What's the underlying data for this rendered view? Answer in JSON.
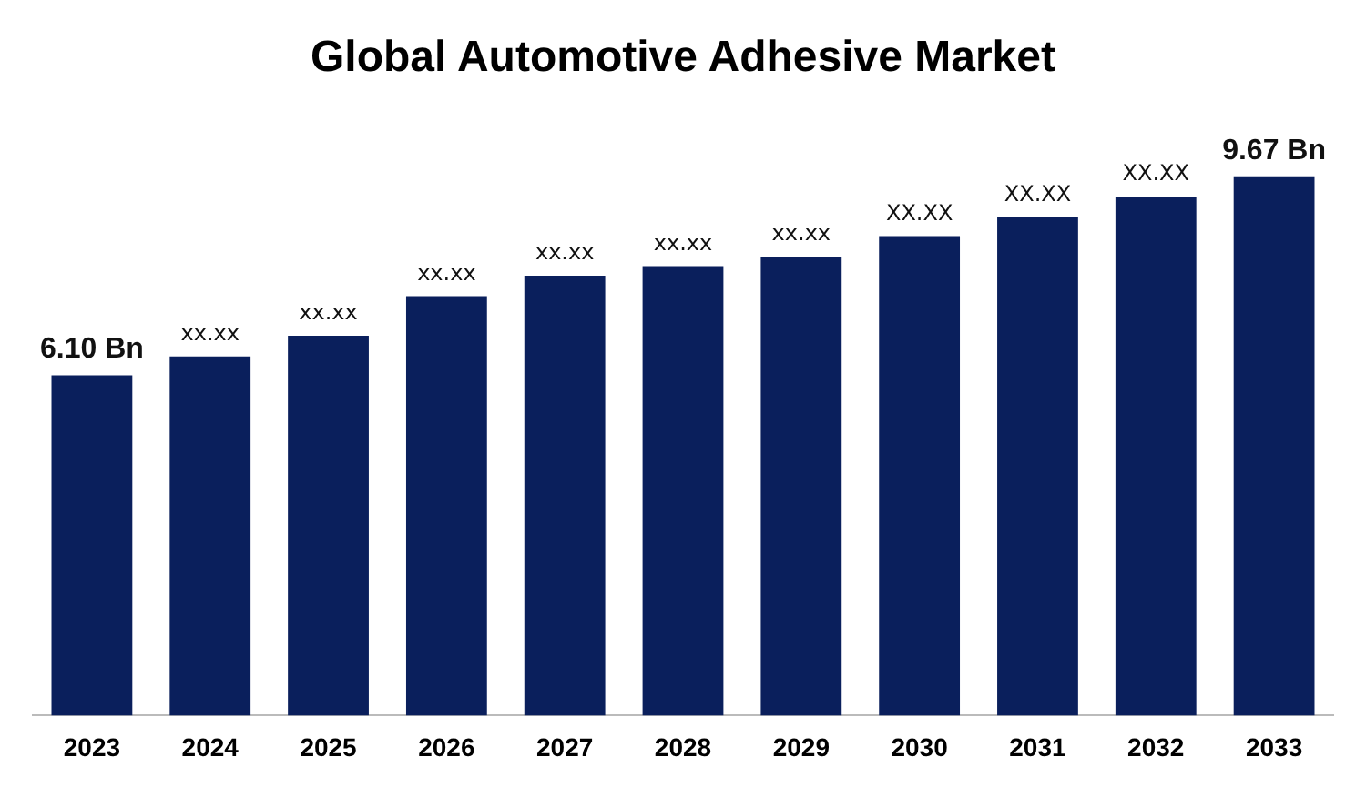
{
  "chart_data": {
    "type": "bar",
    "title": "Global Automotive Adhesive Market",
    "categories": [
      "2023",
      "2024",
      "2025",
      "2026",
      "2027",
      "2028",
      "2029",
      "2030",
      "2031",
      "2032",
      "2033"
    ],
    "values": [
      6.1,
      6.44,
      6.81,
      7.52,
      7.89,
      8.06,
      8.23,
      8.6,
      8.94,
      9.31,
      9.67
    ],
    "value_labels": [
      "6.10 Bn",
      "xx.xx",
      "xx.xx",
      "xx.xx",
      "xx.xx",
      "xx.xx",
      "xx.xx",
      "XX.XX",
      "XX.XX",
      "XX.XX",
      "9.67 Bn"
    ],
    "tick_labels": "x",
    "color": "#0a1f5c",
    "grid": false,
    "legend": false
  }
}
